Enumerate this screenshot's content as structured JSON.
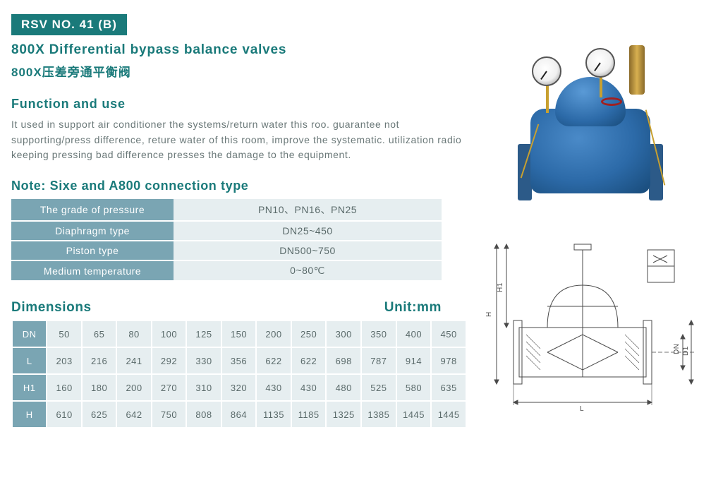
{
  "badge": "RSV NO. 41 (B)",
  "title_en": "800X Differential bypass balance valves",
  "title_cn": "800X压差旁通平衡阀",
  "function": {
    "heading": "Function and use",
    "body": "It used in support air conditioner the systems/return water this roo. guarantee not supporting/press difference, reture water of this room, improve the systematic. utilization radio keeping pressing bad difference presses the damage to the equipment."
  },
  "note": {
    "heading": "Note: Sixe and A800 connection type",
    "rows": [
      {
        "label": "The grade of pressure",
        "value": "PN10、PN16、PN25"
      },
      {
        "label": "Diaphragm type",
        "value": "DN25~450"
      },
      {
        "label": "Piston type",
        "value": "DN500~750"
      },
      {
        "label": "Medium temperature",
        "value": "0~80℃"
      }
    ],
    "label_bg": "#7aa5b3",
    "value_bg": "#e6eef0"
  },
  "dimensions": {
    "heading": "Dimensions",
    "unit": "Unit:mm",
    "headers": [
      "DN",
      "L",
      "H1",
      "H"
    ],
    "columns": [
      "50",
      "65",
      "80",
      "100",
      "125",
      "150",
      "200",
      "250",
      "300",
      "350",
      "400",
      "450"
    ],
    "rows": {
      "DN": [
        "50",
        "65",
        "80",
        "100",
        "125",
        "150",
        "200",
        "250",
        "300",
        "350",
        "400",
        "450"
      ],
      "L": [
        "203",
        "216",
        "241",
        "292",
        "330",
        "356",
        "622",
        "622",
        "698",
        "787",
        "914",
        "978"
      ],
      "H1": [
        "160",
        "180",
        "200",
        "270",
        "310",
        "320",
        "430",
        "430",
        "480",
        "525",
        "580",
        "635"
      ],
      "H": [
        "610",
        "625",
        "642",
        "750",
        "808",
        "864",
        "1135",
        "1185",
        "1325",
        "1385",
        "1445",
        "1445"
      ]
    },
    "header_bg": "#7aa5b3",
    "cell_bg": "#e6eef0"
  },
  "colors": {
    "brand": "#1a7a7a",
    "text": "#5a6a6a",
    "valve_blue": "#2c6aa8",
    "brass": "#c8a030"
  },
  "drawing": {
    "labels": [
      "H",
      "H1",
      "L",
      "DN",
      "D1"
    ],
    "stroke": "#4a4a4a"
  }
}
